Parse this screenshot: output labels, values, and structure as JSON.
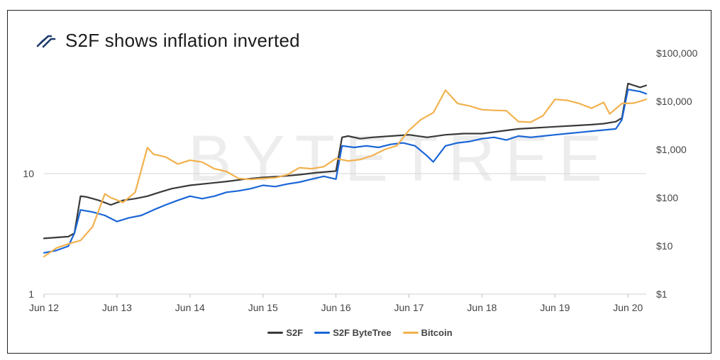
{
  "chart_data": {
    "type": "line",
    "title": "S2F shows inflation inverted",
    "watermark": "BYTETREE",
    "left_axis": {
      "scale": "log",
      "ticks": [
        1,
        10
      ],
      "tick_labels": [
        "1",
        "10"
      ],
      "range": [
        1,
        100
      ]
    },
    "right_axis": {
      "scale": "log",
      "range": [
        1,
        100000
      ],
      "ticks": [
        1,
        10,
        100,
        1000,
        10000,
        100000
      ],
      "tick_labels": [
        "$1",
        "$10",
        "$100",
        "$1,000",
        "$10,000",
        "$100,000"
      ]
    },
    "x_axis": {
      "range": [
        "2012-06",
        "2020-09"
      ],
      "ticks": [
        "2012-06",
        "2013-06",
        "2014-06",
        "2015-06",
        "2016-06",
        "2017-06",
        "2018-06",
        "2019-06",
        "2020-06"
      ],
      "tick_labels": [
        "Jun 12",
        "Jun 13",
        "Jun 14",
        "Jun 15",
        "Jun 16",
        "Jun 17",
        "Jun 18",
        "Jun 19",
        "Jun 20"
      ]
    },
    "gridline": {
      "left_axis_value": 10
    },
    "legend_position": "bottom-center",
    "series": [
      {
        "name": "S2F",
        "color": "#3a3a3a",
        "axis": "left",
        "x": [
          "2012-06",
          "2012-10",
          "2012-11",
          "2012-12",
          "2013-01",
          "2013-03",
          "2013-05",
          "2013-07",
          "2013-09",
          "2013-11",
          "2014-01",
          "2014-03",
          "2014-06",
          "2014-09",
          "2014-12",
          "2015-03",
          "2015-06",
          "2015-09",
          "2015-12",
          "2016-03",
          "2016-06",
          "2016-07",
          "2016-08",
          "2016-10",
          "2016-12",
          "2017-03",
          "2017-06",
          "2017-09",
          "2017-12",
          "2018-03",
          "2018-06",
          "2018-09",
          "2018-12",
          "2019-03",
          "2019-06",
          "2019-09",
          "2019-12",
          "2020-02",
          "2020-04",
          "2020-05",
          "2020-06",
          "2020-08",
          "2020-09"
        ],
        "y": [
          2.9,
          3.0,
          3.2,
          6.5,
          6.4,
          6.0,
          5.5,
          6.0,
          6.2,
          6.5,
          7.0,
          7.5,
          8.0,
          8.3,
          8.6,
          9.0,
          9.3,
          9.5,
          9.8,
          10.2,
          10.5,
          20.0,
          20.5,
          19.5,
          20.0,
          20.5,
          21.0,
          20.0,
          21.0,
          21.5,
          21.5,
          22.5,
          23.5,
          24.0,
          24.5,
          25.0,
          25.5,
          26.0,
          27.0,
          29.0,
          56.0,
          52.0,
          54.0
        ]
      },
      {
        "name": "S2F ByteTree",
        "color": "#1a66d6",
        "axis": "left",
        "x": [
          "2012-06",
          "2012-08",
          "2012-10",
          "2012-11",
          "2012-12",
          "2013-02",
          "2013-04",
          "2013-06",
          "2013-08",
          "2013-10",
          "2013-12",
          "2014-02",
          "2014-04",
          "2014-06",
          "2014-08",
          "2014-10",
          "2014-12",
          "2015-02",
          "2015-04",
          "2015-06",
          "2015-08",
          "2015-10",
          "2015-12",
          "2016-02",
          "2016-04",
          "2016-06",
          "2016-07",
          "2016-09",
          "2016-11",
          "2017-01",
          "2017-03",
          "2017-05",
          "2017-07",
          "2017-09",
          "2017-10",
          "2017-12",
          "2018-02",
          "2018-04",
          "2018-06",
          "2018-08",
          "2018-10",
          "2018-12",
          "2019-02",
          "2019-04",
          "2019-06",
          "2019-08",
          "2019-10",
          "2019-12",
          "2020-02",
          "2020-04",
          "2020-05",
          "2020-06",
          "2020-08",
          "2020-09"
        ],
        "y": [
          2.2,
          2.3,
          2.5,
          3.2,
          5.0,
          4.8,
          4.5,
          4.0,
          4.3,
          4.5,
          5.0,
          5.5,
          6.0,
          6.5,
          6.2,
          6.5,
          7.0,
          7.2,
          7.5,
          8.0,
          7.8,
          8.2,
          8.5,
          9.0,
          9.5,
          9.0,
          17.0,
          16.5,
          17.0,
          16.5,
          17.5,
          18.0,
          17.0,
          14.0,
          12.5,
          17.0,
          18.0,
          18.5,
          19.5,
          20.0,
          19.0,
          20.5,
          20.0,
          20.5,
          21.0,
          21.5,
          22.0,
          22.5,
          23.0,
          23.5,
          28.0,
          50.0,
          48.0,
          46.0
        ]
      },
      {
        "name": "Bitcoin",
        "color": "#f2b14e",
        "axis": "right",
        "x": [
          "2012-06",
          "2012-08",
          "2012-10",
          "2012-12",
          "2013-02",
          "2013-04",
          "2013-05",
          "2013-07",
          "2013-09",
          "2013-11",
          "2013-12",
          "2014-02",
          "2014-04",
          "2014-06",
          "2014-08",
          "2014-10",
          "2014-12",
          "2015-02",
          "2015-04",
          "2015-06",
          "2015-08",
          "2015-10",
          "2015-12",
          "2016-02",
          "2016-04",
          "2016-06",
          "2016-08",
          "2016-10",
          "2016-12",
          "2017-02",
          "2017-04",
          "2017-06",
          "2017-08",
          "2017-10",
          "2017-12",
          "2018-02",
          "2018-04",
          "2018-06",
          "2018-08",
          "2018-10",
          "2018-12",
          "2019-02",
          "2019-04",
          "2019-06",
          "2019-08",
          "2019-10",
          "2019-12",
          "2020-02",
          "2020-03",
          "2020-05",
          "2020-07",
          "2020-09"
        ],
        "y": [
          6,
          9,
          11,
          13,
          25,
          120,
          100,
          80,
          130,
          1100,
          800,
          700,
          500,
          600,
          550,
          400,
          350,
          250,
          240,
          250,
          260,
          300,
          420,
          400,
          440,
          650,
          580,
          620,
          750,
          1000,
          1200,
          2500,
          4200,
          5800,
          17000,
          9000,
          8000,
          6700,
          6500,
          6400,
          3800,
          3700,
          5000,
          11000,
          10500,
          9000,
          7200,
          9500,
          5500,
          9000,
          9200,
          11000
        ]
      }
    ]
  }
}
